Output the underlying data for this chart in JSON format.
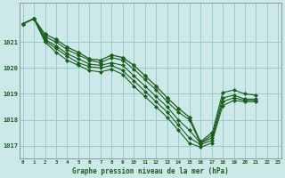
{
  "background_color": "#cce8e8",
  "grid_color": "#99cccc",
  "line_color": "#1a5c1a",
  "marker_color": "#1a5c1a",
  "xlabel": "Graphe pression niveau de la mer (hPa)",
  "ylim": [
    1016.5,
    1022.5
  ],
  "xlim": [
    -0.3,
    23.3
  ],
  "yticks": [
    1017,
    1018,
    1019,
    1020,
    1021
  ],
  "xticks": [
    0,
    1,
    2,
    3,
    4,
    5,
    6,
    7,
    8,
    9,
    10,
    11,
    12,
    13,
    14,
    15,
    16,
    17,
    18,
    19,
    20,
    21,
    22,
    23
  ],
  "xtick_labels": [
    "0",
    "1",
    "2",
    "3",
    "4",
    "5",
    "6",
    "7",
    "8",
    "9",
    "10",
    "11",
    "12",
    "13",
    "14",
    "15",
    "16",
    "17",
    "18",
    "19",
    "20",
    "21",
    "22",
    "23"
  ],
  "series": [
    [
      1021.7,
      1021.9,
      1021.2,
      1021.0,
      1020.7,
      1020.5,
      1020.3,
      1020.2,
      1020.4,
      1020.3,
      1019.95,
      1019.55,
      1019.15,
      1018.7,
      1018.3,
      1018.0,
      1017.1,
      1017.4,
      1019.05,
      1019.15,
      1019.0,
      1018.95,
      null,
      null
    ],
    [
      1021.7,
      1021.9,
      1021.1,
      1020.85,
      1020.55,
      1020.35,
      1020.15,
      1020.1,
      1020.2,
      1020.1,
      1019.7,
      1019.3,
      1018.9,
      1018.5,
      1018.0,
      1017.6,
      1017.1,
      1017.3,
      1018.85,
      1018.95,
      1018.8,
      1018.8,
      null,
      null
    ],
    [
      1021.7,
      1021.9,
      1021.05,
      1020.75,
      1020.45,
      1020.2,
      1020.05,
      1020.0,
      1020.1,
      1019.9,
      1019.5,
      1019.1,
      1018.7,
      1018.3,
      1017.8,
      1017.3,
      1017.05,
      1017.2,
      1018.7,
      1018.85,
      1018.75,
      1018.75,
      null,
      null
    ],
    [
      1021.7,
      1021.9,
      1021.0,
      1020.6,
      1020.3,
      1020.1,
      1019.9,
      1019.85,
      1019.95,
      1019.75,
      1019.3,
      1018.9,
      1018.5,
      1018.1,
      1017.6,
      1017.1,
      1016.95,
      1017.1,
      1018.55,
      1018.75,
      1018.7,
      1018.7,
      null,
      null
    ]
  ],
  "main_series": [
    1021.7,
    1021.9,
    1021.3,
    1021.1,
    1020.8,
    1020.6,
    1020.35,
    1020.3,
    1020.5,
    1020.4,
    1020.1,
    1019.7,
    1019.3,
    1018.85,
    1018.45,
    1018.1,
    1017.15,
    1017.5,
    null,
    null,
    null,
    null,
    null,
    null
  ]
}
